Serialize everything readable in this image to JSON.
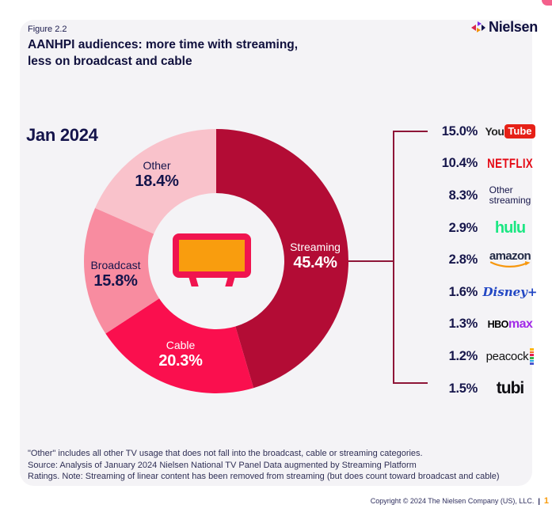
{
  "header": {
    "figure_label": "Figure 2.2",
    "title_line1": "AANHPI audiences: more time with streaming,",
    "title_line2": "less on broadcast and cable",
    "brand": "Nielsen"
  },
  "chart_data": {
    "type": "pie",
    "donut": true,
    "title": "AANHPI audiences: more time with streaming, less on broadcast and cable",
    "date_label": "Jan 2024",
    "start_angle_deg": 0,
    "direction": "clockwise",
    "categories": [
      "Streaming",
      "Cable",
      "Broadcast",
      "Other"
    ],
    "values": [
      45.4,
      20.3,
      15.8,
      18.4
    ],
    "value_labels": [
      "45.4%",
      "20.3%",
      "15.8%",
      "18.4%"
    ],
    "colors": [
      "#b30c35",
      "#fa0f4e",
      "#f88ca0",
      "#f9c2cb"
    ],
    "center_icon": "tv-icon",
    "connector_color": "#8e1537",
    "streaming_breakdown": [
      {
        "name": "YouTube",
        "value": "15.0%",
        "logo_part1": "You",
        "logo_part2": "Tube"
      },
      {
        "name": "Netflix",
        "value": "10.4%",
        "text": "NETFLIX"
      },
      {
        "name": "Other streaming",
        "value": "8.3%",
        "line1": "Other",
        "line2": "streaming"
      },
      {
        "name": "Hulu",
        "value": "2.9%",
        "text": "hulu"
      },
      {
        "name": "Amazon",
        "value": "2.8%",
        "text": "amazon"
      },
      {
        "name": "Disney+",
        "value": "1.6%",
        "text": "Disney+"
      },
      {
        "name": "HBO Max",
        "value": "1.3%",
        "logo_part1": "HBO",
        "logo_part2": "max"
      },
      {
        "name": "Peacock",
        "value": "1.2%",
        "text": "peacock"
      },
      {
        "name": "Tubi",
        "value": "1.5%",
        "text": "tubi"
      }
    ]
  },
  "footnotes": {
    "line1": "\"Other\" includes all other TV usage that does not fall into the broadcast, cable or streaming categories.",
    "line2": "Source: Analysis of January 2024 Nielsen National TV Panel Data augmented by Streaming Platform",
    "line3": "Ratings. Note: Streaming of linear content has been removed from streaming (but does count toward broadcast and cable)"
  },
  "footer": {
    "copyright": "Copyright © 2024 The Nielsen Company (US), LLC.",
    "separator": "|",
    "page_number": "1"
  }
}
